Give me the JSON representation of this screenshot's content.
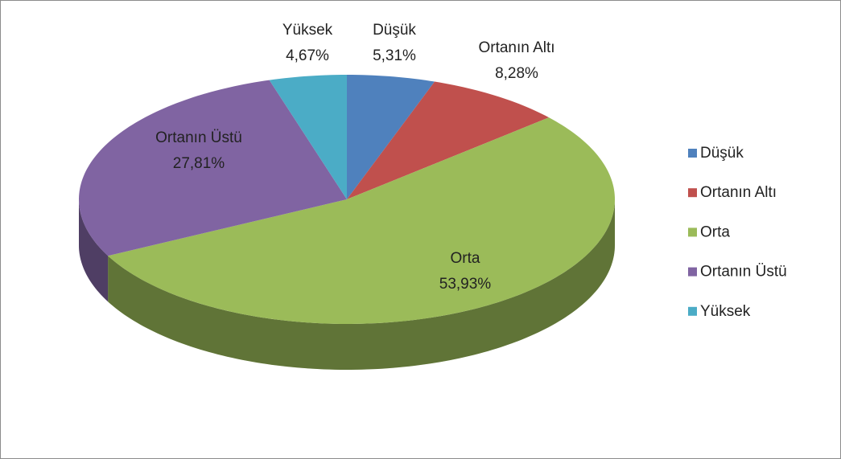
{
  "chart_data": {
    "type": "pie",
    "categories": [
      "Düşük",
      "Ortanın Altı",
      "Orta",
      "Ortanın Üstü",
      "Yüksek"
    ],
    "values": [
      5.31,
      8.28,
      53.93,
      27.81,
      4.67
    ],
    "value_labels": [
      "5,31%",
      "8,28%",
      "53,93%",
      "27,81%",
      "4,67%"
    ],
    "colors": [
      "#4f81bd",
      "#c0504d",
      "#9bbb59",
      "#8064a2",
      "#4bacc6"
    ],
    "legend": "right"
  }
}
